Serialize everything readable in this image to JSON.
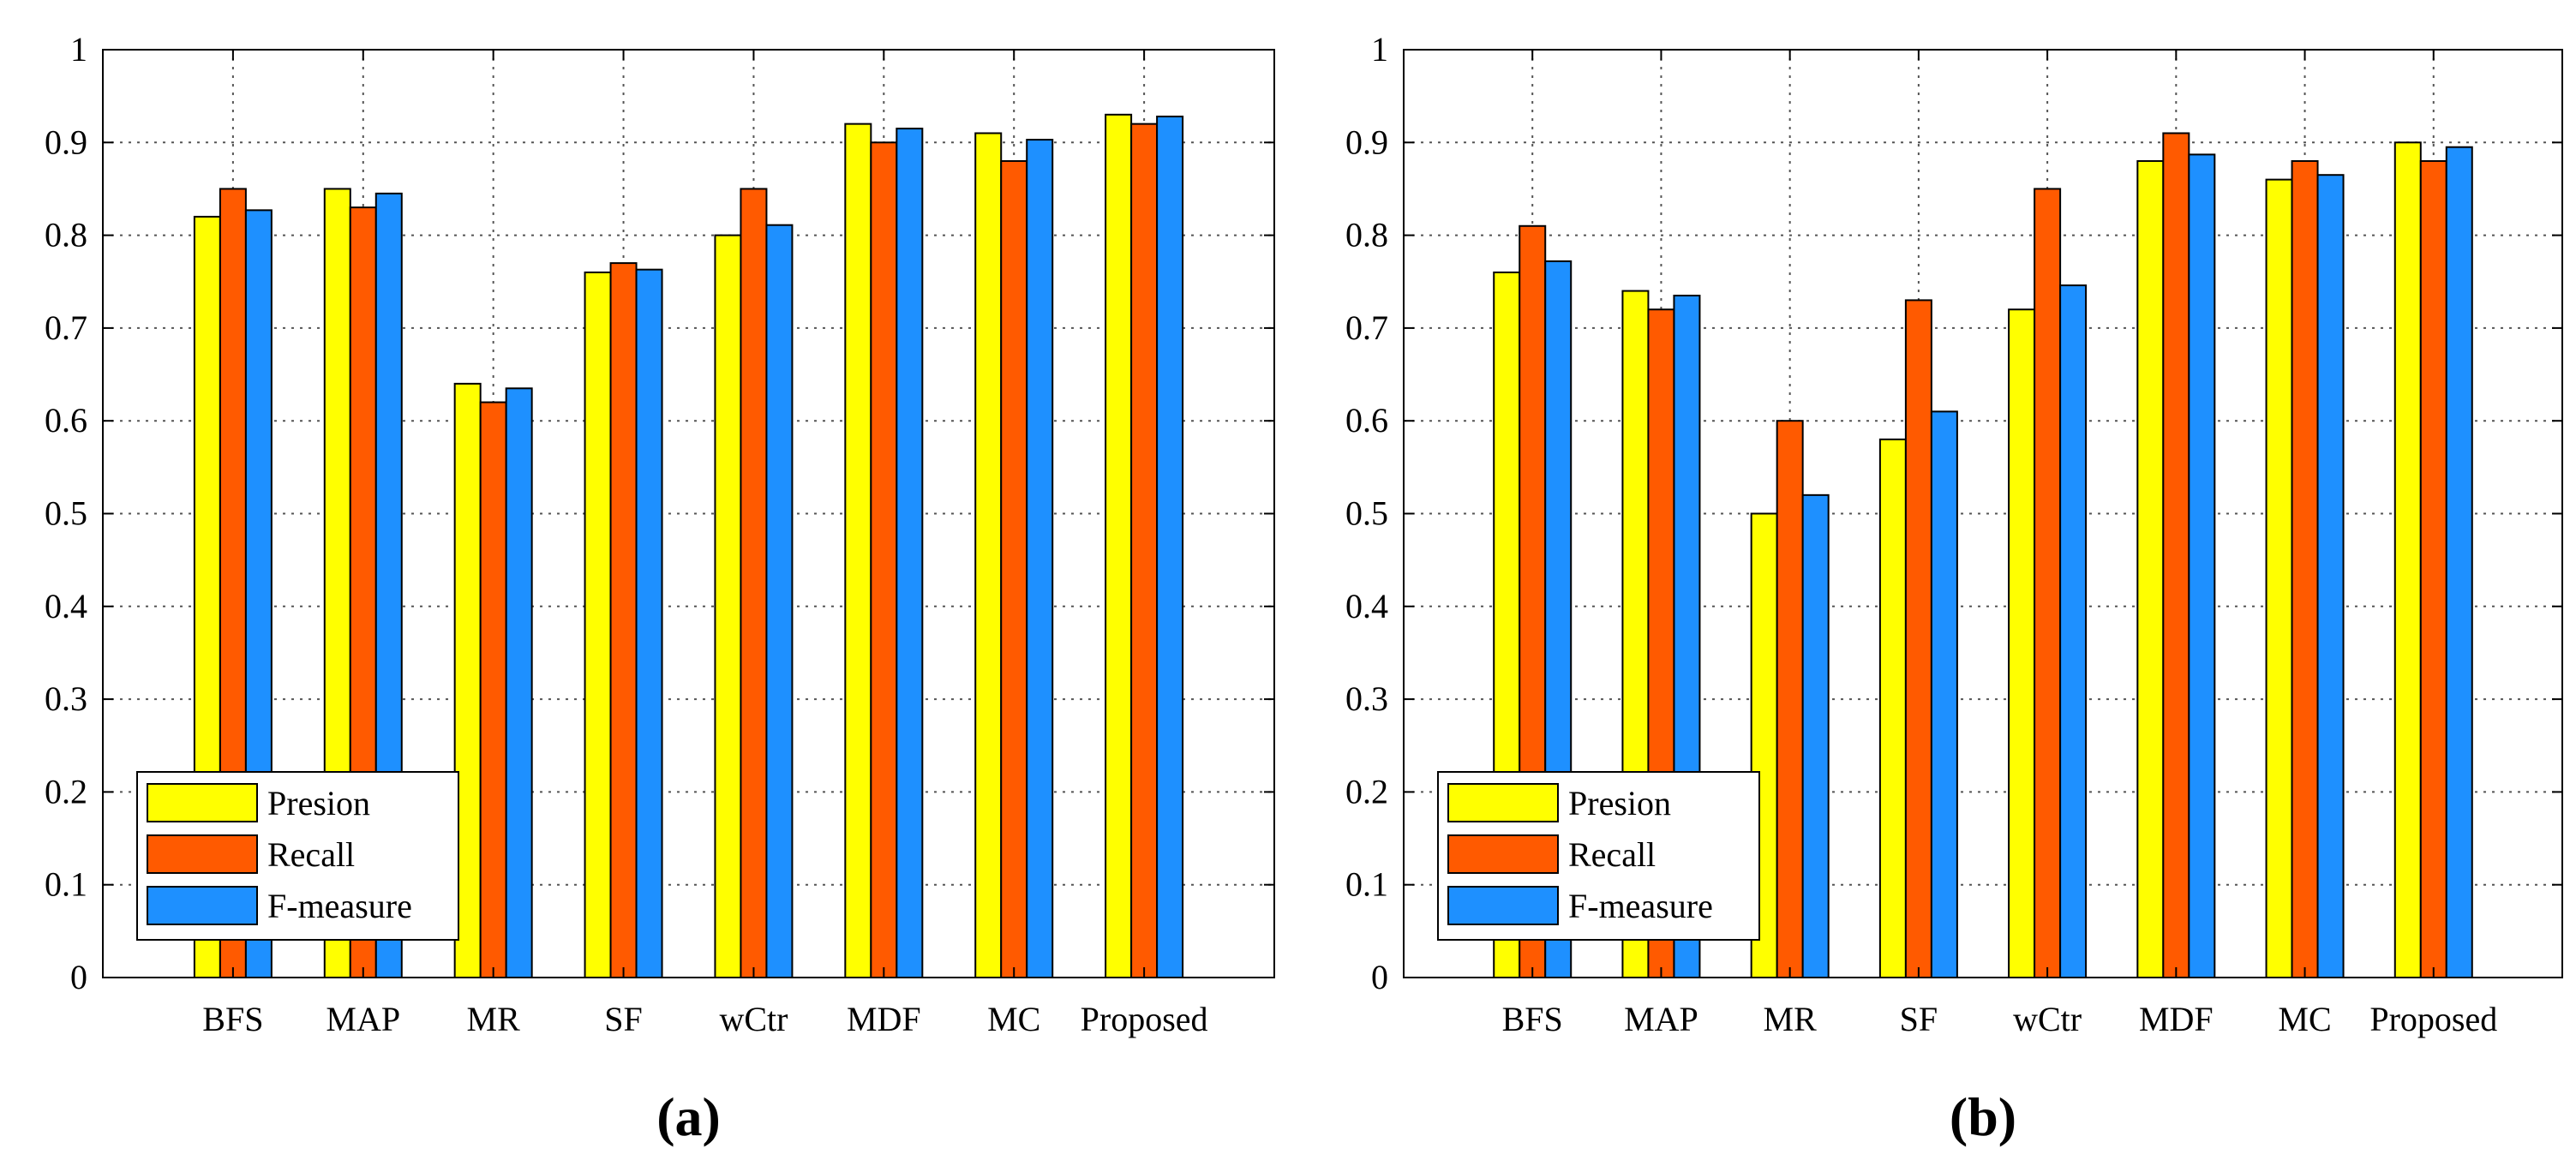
{
  "figure": {
    "colors": {
      "Presion": "#ffff00",
      "Recall": "#ff5a00",
      "F-measure": "#1e90ff",
      "grid": "#555555",
      "axis": "#000000"
    }
  },
  "chart_data": [
    {
      "panel_label": "(a)",
      "type": "bar",
      "title": "",
      "xlabel": "",
      "ylabel": "",
      "categories": [
        "BFS",
        "MAP",
        "MR",
        "SF",
        "wCtr",
        "MDF",
        "MC",
        "Proposed"
      ],
      "series": [
        {
          "name": "Presion",
          "values": [
            0.82,
            0.85,
            0.64,
            0.76,
            0.8,
            0.92,
            0.91,
            0.93
          ]
        },
        {
          "name": "Recall",
          "values": [
            0.85,
            0.83,
            0.62,
            0.77,
            0.85,
            0.9,
            0.88,
            0.92
          ]
        },
        {
          "name": "F-measure",
          "values": [
            0.827,
            0.845,
            0.635,
            0.763,
            0.811,
            0.915,
            0.903,
            0.928
          ]
        }
      ],
      "ylim": [
        0,
        1
      ],
      "yticks": [
        "0",
        "0.1",
        "0.2",
        "0.3",
        "0.4",
        "0.5",
        "0.6",
        "0.7",
        "0.8",
        "0.9",
        "1"
      ],
      "grid": true,
      "legend": "bottom-left"
    },
    {
      "panel_label": "(b)",
      "type": "bar",
      "title": "",
      "xlabel": "",
      "ylabel": "",
      "categories": [
        "BFS",
        "MAP",
        "MR",
        "SF",
        "wCtr",
        "MDF",
        "MC",
        "Proposed"
      ],
      "series": [
        {
          "name": "Presion",
          "values": [
            0.76,
            0.74,
            0.5,
            0.58,
            0.72,
            0.88,
            0.86,
            0.9
          ]
        },
        {
          "name": "Recall",
          "values": [
            0.81,
            0.72,
            0.6,
            0.73,
            0.85,
            0.91,
            0.88,
            0.88
          ]
        },
        {
          "name": "F-measure",
          "values": [
            0.772,
            0.735,
            0.52,
            0.61,
            0.746,
            0.887,
            0.865,
            0.895
          ]
        }
      ],
      "ylim": [
        0,
        1
      ],
      "yticks": [
        "0",
        "0.1",
        "0.2",
        "0.3",
        "0.4",
        "0.5",
        "0.6",
        "0.7",
        "0.8",
        "0.9",
        "1"
      ],
      "grid": true,
      "legend": "bottom-left"
    }
  ]
}
